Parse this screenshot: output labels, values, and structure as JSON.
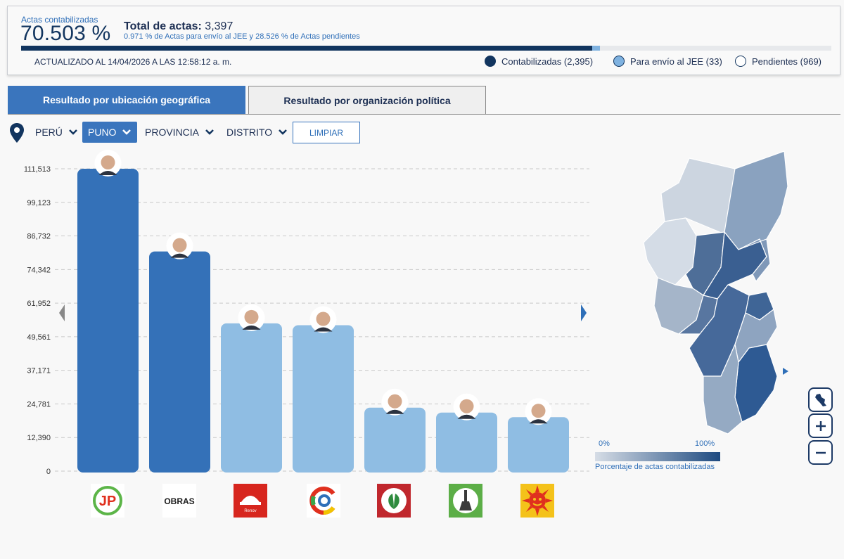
{
  "header": {
    "actas_label": "Actas contabilizadas",
    "actas_pct": "70.503 %",
    "total_prefix": "Total de actas:",
    "total_value": "3,397",
    "sub_text": "0.971 % de Actas para envío al JEE y 28.526 % de Actas pendientes",
    "updated": "ACTUALIZADO AL 14/04/2026 A LAS 12:58:12 a. m.",
    "progress": {
      "contabilizadas_pct": 70.503,
      "jee_pct": 0.971,
      "pendientes_pct": 28.526
    },
    "legend": [
      {
        "label": "Contabilizadas (2,395)",
        "color": "#12355f"
      },
      {
        "label": "Para envío al JEE (33)",
        "color": "#7fb2e0"
      },
      {
        "label": "Pendientes (969)",
        "color": "#ffffff"
      }
    ]
  },
  "tabs": [
    {
      "label": "Resultado por ubicación geográfica",
      "active": true
    },
    {
      "label": "Resultado por organización política",
      "active": false
    }
  ],
  "filters": {
    "pais": "PERÚ",
    "region": "PUNO",
    "provincia": "PROVINCIA",
    "distrito": "DISTRITO",
    "clear_label": "LIMPIAR"
  },
  "chart_data": {
    "type": "bar",
    "title": "",
    "xlabel": "",
    "ylabel": "",
    "ylim": [
      0,
      111513
    ],
    "yticks": [
      "111,513",
      "99,123",
      "86,732",
      "74,342",
      "61,952",
      "49,561",
      "37,171",
      "24,781",
      "12,390",
      "0"
    ],
    "categories": [
      "JP",
      "OBRAS",
      "Renovación Popular",
      "Partido C",
      "Partido Verde",
      "Partido Escoba",
      "Partido Sol"
    ],
    "values": [
      111513,
      81000,
      54500,
      53800,
      23400,
      21600,
      19900
    ],
    "colors": [
      "#3471b8",
      "#3471b8",
      "#8fbde3",
      "#8fbde3",
      "#8fbde3",
      "#8fbde3",
      "#8fbde3"
    ]
  },
  "logos": [
    {
      "name": "jp-logo",
      "text": "JP"
    },
    {
      "name": "obras-logo",
      "text": "OBRAS"
    },
    {
      "name": "renovacion-logo",
      "text": "Renov"
    },
    {
      "name": "c-party-logo",
      "text": "C"
    },
    {
      "name": "verde-logo",
      "text": ""
    },
    {
      "name": "escoba-logo",
      "text": ""
    },
    {
      "name": "sol-logo",
      "text": ""
    }
  ],
  "map": {
    "legend_min": "0%",
    "legend_max": "100%",
    "legend_title": "Porcentaje de actas contabilizadas"
  }
}
